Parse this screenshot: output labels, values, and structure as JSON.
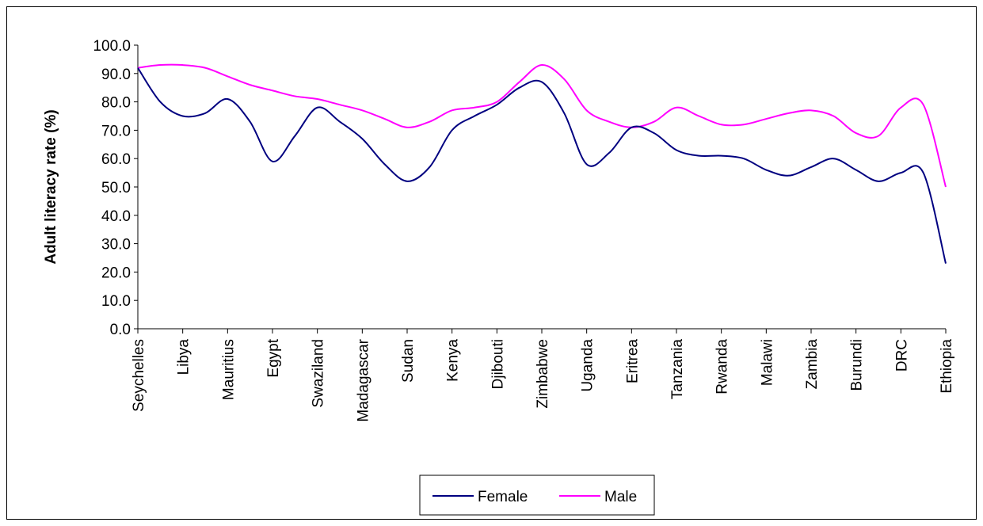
{
  "chart_data": {
    "type": "line",
    "title": "",
    "xlabel": "",
    "ylabel": "Adult literacy rate (%)",
    "ylim": [
      0,
      100
    ],
    "yticks": [
      "0.0",
      "10.0",
      "20.0",
      "30.0",
      "40.0",
      "50.0",
      "60.0",
      "70.0",
      "80.0",
      "90.0",
      "100.0"
    ],
    "categories": [
      "Seychelles",
      "",
      "Libya",
      "",
      "Mauritius",
      "",
      "Egypt",
      "",
      "Swaziland",
      "",
      "Madagascar",
      "",
      "Sudan",
      "",
      "Kenya",
      "",
      "Djibouti",
      "",
      "Zimbabwe",
      "",
      "Uganda",
      "",
      "Eritrea",
      "",
      "Tanzania",
      "",
      "Rwanda",
      "",
      "Malawi",
      "",
      "Zambia",
      "",
      "Burundi",
      "",
      "DRC",
      "",
      "Ethiopia"
    ],
    "series": [
      {
        "name": "Female",
        "color": "#000080",
        "values": [
          92,
          80,
          75,
          76,
          81,
          73,
          59,
          68,
          78,
          73,
          67,
          58,
          52,
          57,
          70,
          75,
          79,
          85,
          87,
          76,
          58,
          62,
          71,
          69,
          63,
          61,
          61,
          60,
          56,
          54,
          57,
          60,
          56,
          52,
          55,
          55,
          23
        ]
      },
      {
        "name": "Male",
        "color": "#ff00ff",
        "values": [
          92,
          93,
          93,
          92,
          89,
          86,
          84,
          82,
          81,
          79,
          77,
          74,
          71,
          73,
          77,
          78,
          80,
          87,
          93,
          88,
          77,
          73,
          71,
          73,
          78,
          75,
          72,
          72,
          74,
          76,
          77,
          75,
          69,
          68,
          78,
          79,
          50
        ]
      }
    ],
    "grid": false,
    "legend_position": "bottom-center"
  }
}
